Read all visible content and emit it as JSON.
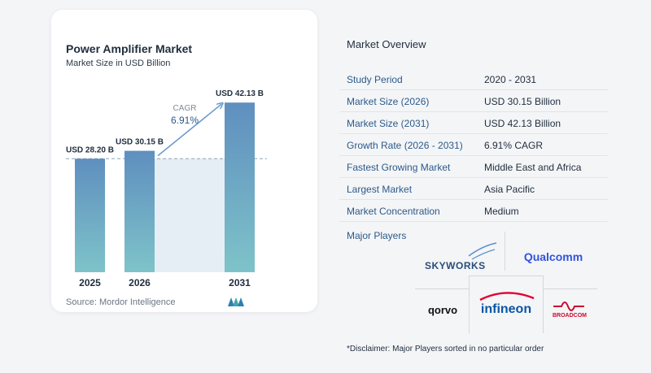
{
  "chart_data": {
    "type": "bar",
    "title": "Power Amplifier Market",
    "subtitle": "Market Size in USD Billion",
    "categories": [
      "2025",
      "2026",
      "2031"
    ],
    "values": [
      28.2,
      30.15,
      42.13
    ],
    "data_labels": [
      "USD 28.20 B",
      "USD 30.15 B",
      "USD 42.13 B"
    ],
    "cagr_label": "CAGR",
    "cagr_value": "6.91%",
    "ylim": [
      0,
      45
    ],
    "grid": false,
    "colors": {
      "bar_top": "#5f8fbf",
      "bar_bottom": "#7ec3c9",
      "band": "#e6eef5",
      "arrow": "#6f9ccc"
    }
  },
  "source": "Source:  Mordor Intelligence",
  "overview": {
    "title": "Market Overview",
    "rows": [
      {
        "key": "Study Period",
        "value": "2020 - 2031"
      },
      {
        "key": "Market Size (2026)",
        "value": "USD 30.15 Billion"
      },
      {
        "key": "Market Size (2031)",
        "value": "USD 42.13 Billion"
      },
      {
        "key": "Growth Rate (2026 - 2031)",
        "value": "6.91% CAGR"
      },
      {
        "key": "Fastest Growing Market",
        "value": "Middle East and Africa"
      },
      {
        "key": "Largest Market",
        "value": "Asia Pacific"
      },
      {
        "key": "Market Concentration",
        "value": "Medium"
      }
    ]
  },
  "players": {
    "title": "Major Players",
    "logos": [
      "SKYWORKS",
      "Qualcomm",
      "Qorvo",
      "infineon",
      "BROADCOM"
    ]
  },
  "disclaimer": "*Disclaimer: Major Players sorted in no particular order"
}
